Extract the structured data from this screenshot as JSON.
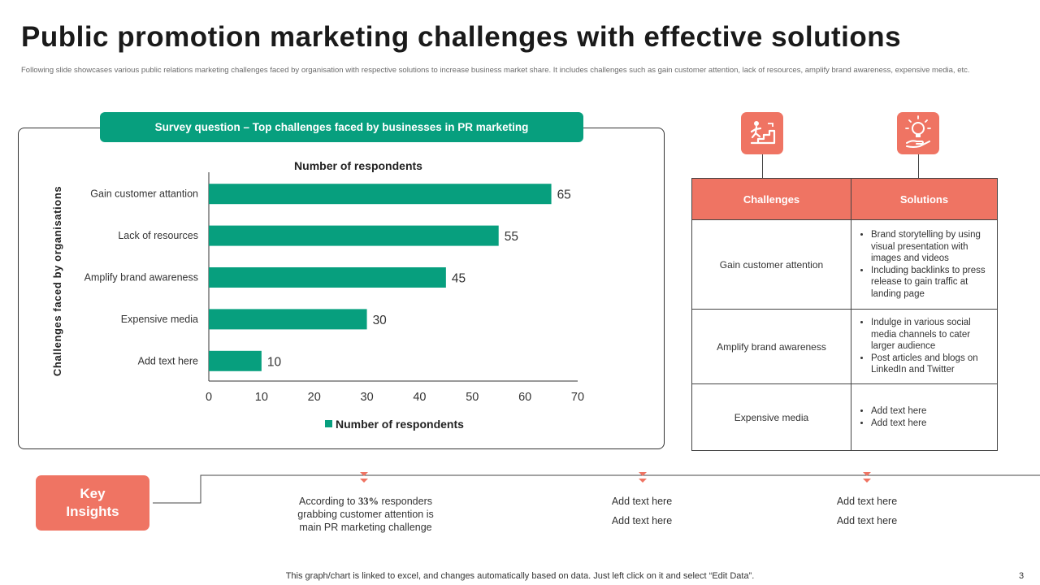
{
  "title": "Public promotion marketing challenges with effective solutions",
  "subtitle": "Following slide showcases various public relations marketing challenges faced by organisation with respective solutions to increase business market share. It includes challenges such as gain customer attention, lack of resources, amplify brand awareness, expensive media, etc.",
  "survey_banner": "Survey question – Top challenges faced by businesses in PR marketing",
  "colors": {
    "accent_green": "#079f7e",
    "accent_coral": "#ef7463"
  },
  "chart_data": {
    "type": "bar",
    "orientation": "horizontal",
    "title": "Number of respondents",
    "ylabel": "Challenges faced by organisations",
    "xlabel": "",
    "categories": [
      "Gain customer attantion",
      "Lack of resources",
      "Amplify brand awareness",
      "Expensive media",
      "Add text here"
    ],
    "values": [
      65,
      55,
      45,
      30,
      10
    ],
    "xlim": [
      0,
      70
    ],
    "xticks": [
      0,
      10,
      20,
      30,
      40,
      50,
      60,
      70
    ],
    "legend": "Number of respondents",
    "legend_position": "bottom",
    "grid": false
  },
  "icons": {
    "challenges": "person-climbing-stairs-icon",
    "solutions": "lightbulb-hand-icon"
  },
  "table": {
    "headers": {
      "challenges": "Challenges",
      "solutions": "Solutions"
    },
    "rows": [
      {
        "challenge": "Gain customer attention",
        "solutions": [
          "Brand storytelling by using visual presentation with images and videos",
          "Including backlinks to press release to gain traffic at landing page"
        ]
      },
      {
        "challenge": "Amplify brand awareness",
        "solutions": [
          "Indulge in various social media channels to cater larger audience",
          "Post articles and blogs on LinkedIn and Twitter"
        ]
      },
      {
        "challenge": "Expensive media",
        "solutions": [
          "Add text here",
          "Add text here"
        ]
      }
    ]
  },
  "key_insights": {
    "label_line1": "Key",
    "label_line2": "Insights",
    "insight1": {
      "prefix": "According to ",
      "highlight": "33%",
      "suffix": " responders grabbing customer attention is main PR marketing challenge"
    },
    "insight2": [
      "Add text here",
      "Add text here"
    ],
    "insight3": [
      "Add text here",
      "Add text here"
    ]
  },
  "footer": "This graph/chart is linked to excel,  and changes automatically based on data. Just left click on it and select “Edit Data”.",
  "page_number": "3"
}
